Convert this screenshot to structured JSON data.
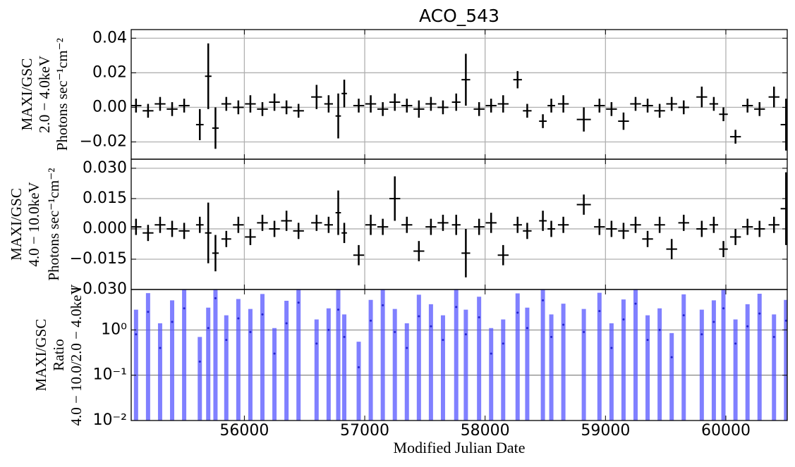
{
  "chart_data": [
    {
      "type": "errorbar",
      "title": "ACO_543",
      "ylabel": [
        "MAXI/GSC",
        "2.0 − 4.0keV",
        "Photons sec⁻¹cm⁻²"
      ],
      "color": "#000000",
      "grid": true,
      "xlim": [
        55060,
        60510
      ],
      "xticks": [
        56000,
        57000,
        58000,
        59000,
        60000
      ],
      "ylim": [
        -0.03,
        0.045
      ],
      "yticks": [
        {
          "value": 0.04,
          "label": "0.04"
        },
        {
          "value": 0.02,
          "label": "0.02"
        },
        {
          "value": 0,
          "label": "0.00"
        },
        {
          "value": -0.02,
          "label": "−0.02"
        }
      ],
      "x": [
        55100,
        55200,
        55300,
        55400,
        55500,
        55630,
        55700,
        55760,
        55850,
        55950,
        56050,
        56150,
        56250,
        56350,
        56450,
        56600,
        56700,
        56780,
        56830,
        56950,
        57050,
        57150,
        57250,
        57350,
        57450,
        57550,
        57650,
        57760,
        57840,
        57950,
        58050,
        58150,
        58270,
        58350,
        58480,
        58550,
        58650,
        58820,
        58950,
        59050,
        59150,
        59250,
        59350,
        59450,
        59550,
        59650,
        59800,
        59900,
        59980,
        60080,
        60180,
        60280,
        60400,
        60500
      ],
      "values": [
        0.001,
        -0.002,
        0.002,
        -0.001,
        0.001,
        -0.01,
        0.018,
        -0.012,
        0.002,
        0.0,
        0.002,
        -0.001,
        0.003,
        0.0,
        -0.002,
        0.006,
        0.002,
        -0.005,
        0.008,
        0.001,
        0.002,
        -0.001,
        0.003,
        0.001,
        -0.001,
        0.002,
        0.0,
        0.003,
        0.016,
        -0.001,
        0.001,
        0.002,
        0.016,
        -0.002,
        -0.008,
        0.001,
        0.002,
        -0.007,
        0.001,
        -0.001,
        -0.008,
        0.002,
        0.001,
        -0.002,
        0.002,
        0.0,
        0.006,
        0.002,
        -0.004,
        -0.017,
        0.001,
        -0.001,
        0.006,
        -0.01
      ],
      "errors": [
        0.004,
        0.004,
        0.004,
        0.004,
        0.004,
        0.009,
        0.019,
        0.012,
        0.004,
        0.004,
        0.005,
        0.004,
        0.005,
        0.004,
        0.004,
        0.007,
        0.005,
        0.013,
        0.008,
        0.004,
        0.005,
        0.004,
        0.005,
        0.004,
        0.005,
        0.004,
        0.004,
        0.005,
        0.015,
        0.004,
        0.004,
        0.005,
        0.005,
        0.004,
        0.004,
        0.004,
        0.005,
        0.007,
        0.004,
        0.004,
        0.005,
        0.004,
        0.004,
        0.004,
        0.004,
        0.004,
        0.006,
        0.004,
        0.004,
        0.004,
        0.004,
        0.004,
        0.006,
        0.015
      ]
    },
    {
      "type": "errorbar",
      "ylabel": [
        "MAXI/GSC",
        "4.0 − 10.0keV",
        "Photons sec⁻¹cm⁻²"
      ],
      "color": "#000000",
      "grid": true,
      "xlim": [
        55060,
        60510
      ],
      "xticks": [
        56000,
        57000,
        58000,
        59000,
        60000
      ],
      "ylim": [
        -0.03,
        0.0345
      ],
      "yticks": [
        {
          "value": 0.03,
          "label": "0.030"
        },
        {
          "value": 0.015,
          "label": "0.015"
        },
        {
          "value": 0,
          "label": "0.000"
        },
        {
          "value": -0.015,
          "label": "−0.015"
        },
        {
          "value": -0.03,
          "label": "−0.030"
        }
      ],
      "x": [
        55100,
        55200,
        55300,
        55400,
        55500,
        55630,
        55700,
        55760,
        55850,
        55950,
        56050,
        56150,
        56250,
        56350,
        56450,
        56600,
        56700,
        56780,
        56830,
        56950,
        57050,
        57150,
        57250,
        57350,
        57450,
        57550,
        57650,
        57760,
        57840,
        57950,
        58050,
        58150,
        58270,
        58350,
        58480,
        58550,
        58650,
        58820,
        58950,
        59050,
        59150,
        59250,
        59350,
        59450,
        59550,
        59650,
        59800,
        59900,
        59980,
        60080,
        60180,
        60280,
        60400,
        60500
      ],
      "values": [
        0.001,
        -0.002,
        0.002,
        0.0,
        -0.001,
        0.002,
        -0.002,
        -0.012,
        -0.005,
        0.002,
        -0.004,
        0.003,
        0.0,
        0.004,
        -0.001,
        0.003,
        0.002,
        0.008,
        -0.002,
        -0.013,
        0.002,
        0.001,
        0.015,
        0.002,
        -0.011,
        0.001,
        0.003,
        0.002,
        -0.012,
        0.001,
        0.003,
        -0.013,
        0.002,
        -0.001,
        0.004,
        0.0,
        0.002,
        0.012,
        0.001,
        0.0,
        -0.001,
        0.002,
        -0.005,
        0.002,
        -0.01,
        0.003,
        0.0,
        0.002,
        -0.01,
        -0.004,
        0.001,
        0.0,
        0.002,
        0.01
      ],
      "errors": [
        0.004,
        0.004,
        0.004,
        0.004,
        0.004,
        0.004,
        0.015,
        0.009,
        0.004,
        0.004,
        0.004,
        0.004,
        0.004,
        0.005,
        0.004,
        0.004,
        0.004,
        0.011,
        0.005,
        0.005,
        0.005,
        0.004,
        0.011,
        0.004,
        0.005,
        0.004,
        0.004,
        0.005,
        0.012,
        0.004,
        0.005,
        0.005,
        0.004,
        0.004,
        0.005,
        0.004,
        0.004,
        0.005,
        0.004,
        0.004,
        0.004,
        0.004,
        0.004,
        0.004,
        0.005,
        0.004,
        0.004,
        0.004,
        0.004,
        0.004,
        0.004,
        0.004,
        0.004,
        0.018
      ]
    },
    {
      "type": "ratio",
      "ylabel": [
        "MAXI/GSC",
        "Ratio",
        "4.0 − 10.0/2.0 − 4.0keV"
      ],
      "xlabel": "Modified Julian Date",
      "color": "#5555ff",
      "log_y": true,
      "grid": true,
      "xlim": [
        55060,
        60510
      ],
      "xticks": [
        56000,
        57000,
        58000,
        59000,
        60000
      ],
      "ylim": [
        0.01,
        7.8
      ],
      "yticks": [
        {
          "value": 1,
          "label": "10⁰"
        },
        {
          "value": 0.1,
          "label": "10⁻¹"
        },
        {
          "value": 0.01,
          "label": "10⁻²"
        }
      ],
      "x": [
        55100,
        55200,
        55300,
        55400,
        55500,
        55630,
        55700,
        55760,
        55850,
        55950,
        56050,
        56150,
        56250,
        56350,
        56450,
        56600,
        56700,
        56780,
        56830,
        56950,
        57050,
        57150,
        57250,
        57350,
        57450,
        57550,
        57650,
        57760,
        57840,
        57950,
        58050,
        58150,
        58270,
        58350,
        58480,
        58550,
        58650,
        58820,
        58950,
        59050,
        59150,
        59250,
        59350,
        59450,
        59550,
        59650,
        59800,
        59900,
        59980,
        60080,
        60180,
        60280,
        60400,
        60500
      ],
      "values": [
        0.8,
        2.5,
        0.4,
        1.5,
        3.0,
        0.2,
        1.1,
        5.0,
        0.6,
        1.8,
        0.9,
        2.2,
        0.3,
        1.4,
        4.0,
        0.5,
        1.0,
        2.8,
        0.7,
        0.15,
        1.6,
        3.5,
        0.9,
        0.4,
        2.0,
        1.2,
        0.6,
        3.2,
        0.8,
        1.9,
        0.3,
        0.5,
        2.4,
        1.1,
        4.5,
        0.7,
        1.3,
        0.9,
        2.6,
        0.4,
        1.7,
        3.8,
        0.6,
        1.0,
        0.25,
        2.1,
        0.8,
        1.5,
        3.0,
        0.5,
        1.2,
        2.3,
        0.7,
        1.6
      ],
      "errors": [
        2,
        4,
        1,
        3,
        6,
        0.5,
        2,
        8,
        1.5,
        3,
        2,
        4,
        0.8,
        3,
        6,
        1.2,
        2,
        5,
        1.5,
        0.4,
        3,
        6,
        2,
        1,
        4,
        2.5,
        1.5,
        5,
        2,
        3.5,
        0.8,
        1.2,
        4,
        2,
        7,
        1.5,
        2.5,
        2,
        4,
        1,
        3,
        6,
        1.5,
        2,
        0.6,
        4,
        2,
        3,
        5,
        1.2,
        2.5,
        4,
        1.5,
        3
      ]
    }
  ]
}
